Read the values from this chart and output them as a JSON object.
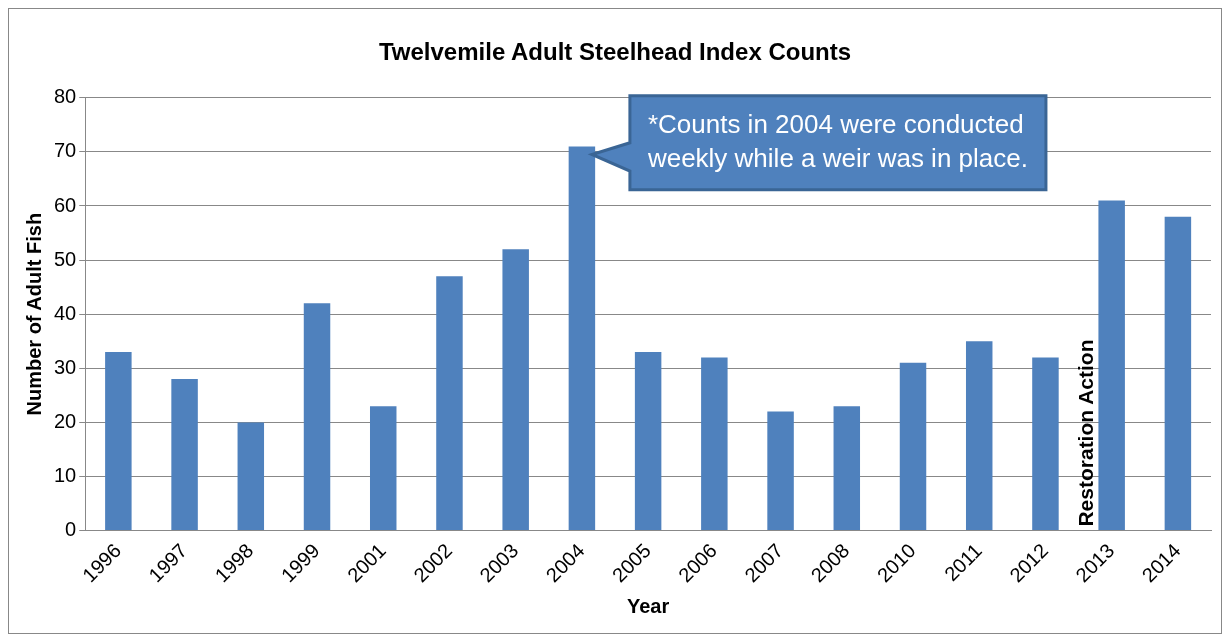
{
  "chart_data": {
    "type": "bar",
    "title": "Twelvemile Adult Steelhead Index Counts",
    "xlabel": "Year",
    "ylabel": "Number of Adult Fish",
    "categories": [
      "1996",
      "1997",
      "1998",
      "1999",
      "2001",
      "2002",
      "2003",
      "2004",
      "2005",
      "2006",
      "2007",
      "2008",
      "2010",
      "2011",
      "2012",
      "2013",
      "2014"
    ],
    "values": [
      33,
      28,
      20,
      42,
      23,
      47,
      52,
      71,
      33,
      32,
      22,
      23,
      31,
      35,
      32,
      61,
      58
    ],
    "color": "#4f81bd",
    "ylim": [
      0,
      80
    ],
    "yticks": [
      0,
      10,
      20,
      30,
      40,
      50,
      60,
      70,
      80
    ],
    "grid": "y",
    "legend": false,
    "annotations": [
      {
        "text": "*Counts in 2004 were conducted weekly while a weir was in place.",
        "x": "2004",
        "y": 71
      },
      {
        "text": "Restoration Action",
        "x": "2013",
        "y": 0
      }
    ]
  }
}
